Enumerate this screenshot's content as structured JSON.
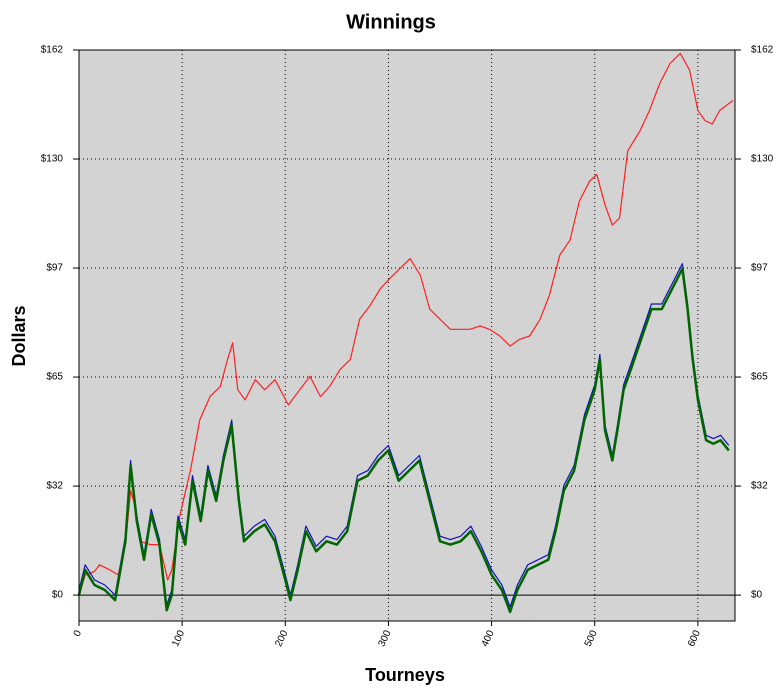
{
  "chart_data": {
    "type": "line",
    "title": "Winnings",
    "x_label": "Tourneys",
    "y_label": "Dollars",
    "xlim": [
      0,
      636
    ],
    "xticks": [
      0,
      100,
      200,
      300,
      400,
      500,
      600
    ],
    "ylim": [
      -7.7,
      162
    ],
    "yticks": [
      {
        "value": 0,
        "label": "$0"
      },
      {
        "value": 32.4,
        "label": "$32"
      },
      {
        "value": 64.8,
        "label": "$65"
      },
      {
        "value": 97.2,
        "label": "$97"
      },
      {
        "value": 129.6,
        "label": "$130"
      },
      {
        "value": 162,
        "label": "$162"
      }
    ],
    "grid": true,
    "series": [
      {
        "color": "#ff2020",
        "x": [
          0,
          6,
          15,
          20,
          30,
          38,
          45,
          50,
          54,
          59,
          69,
          78,
          86,
          90,
          98,
          108,
          117,
          127,
          137,
          144,
          149,
          154,
          161,
          171,
          180,
          190,
          203,
          214,
          224,
          234,
          243,
          253,
          263,
          272,
          282,
          292,
          301,
          311,
          321,
          331,
          340,
          350,
          360,
          369,
          379,
          389,
          398,
          408,
          418,
          427,
          437,
          447,
          456,
          466,
          476,
          485,
          495,
          502,
          510,
          517,
          524,
          532,
          544,
          553,
          563,
          573,
          583,
          592,
          600,
          607,
          614,
          621,
          634
        ],
        "values": [
          0,
          6,
          7,
          9,
          7.5,
          6,
          15,
          31,
          27,
          16,
          15,
          15,
          4.5,
          7.5,
          24,
          37,
          52,
          59,
          62,
          70,
          75,
          61,
          58,
          64,
          61,
          64,
          56.5,
          61,
          65,
          59,
          62,
          67,
          70,
          82,
          86,
          91,
          94,
          97,
          100,
          95,
          85,
          82,
          79,
          79,
          79,
          80,
          79,
          77,
          74,
          76,
          77,
          82,
          89,
          101,
          105.5,
          117,
          123,
          125,
          116,
          110,
          112,
          132,
          138,
          144,
          152,
          158,
          161,
          156,
          144,
          141,
          140,
          144,
          147
        ]
      },
      {
        "color": "#1010c0",
        "x": [
          0,
          6,
          15,
          25,
          35,
          45,
          50,
          56,
          63,
          70,
          78,
          85,
          90,
          96,
          103,
          110,
          118,
          125,
          133,
          140,
          148,
          155,
          160,
          170,
          180,
          190,
          200,
          205,
          212,
          220,
          230,
          240,
          250,
          260,
          270,
          280,
          290,
          300,
          310,
          320,
          330,
          340,
          350,
          360,
          370,
          380,
          390,
          400,
          410,
          418,
          425,
          435,
          445,
          455,
          462,
          470,
          480,
          490,
          500,
          505,
          510,
          517,
          522,
          528,
          535,
          545,
          555,
          565,
          575,
          585,
          590,
          595,
          600,
          608,
          615,
          622,
          630
        ],
        "values": [
          1.5,
          9,
          4.5,
          3,
          0,
          17.5,
          40,
          23.5,
          12,
          25.5,
          16.5,
          -3,
          1.5,
          23.5,
          16.5,
          35.5,
          23.5,
          38.5,
          29.5,
          41.5,
          52,
          29.5,
          17.5,
          20.5,
          22.5,
          17.5,
          6,
          0,
          9,
          20.5,
          14.5,
          17.5,
          16.5,
          20.5,
          35.5,
          37,
          41.5,
          44.5,
          35.5,
          38.5,
          41.5,
          29.5,
          17.5,
          16.5,
          17.5,
          20.5,
          14.5,
          7.5,
          3,
          -3.5,
          3,
          9,
          10.5,
          12,
          20.5,
          32.5,
          38.5,
          53.5,
          62.5,
          71.5,
          50.5,
          41.5,
          50.5,
          62.5,
          68.5,
          77.5,
          86.5,
          86.5,
          92.5,
          98.5,
          86.5,
          71.5,
          59.5,
          47.5,
          46.5,
          47.5,
          44.5
        ]
      },
      {
        "color": "#006600",
        "x": [
          0,
          6,
          15,
          25,
          35,
          45,
          50,
          56,
          63,
          70,
          78,
          85,
          90,
          96,
          103,
          110,
          118,
          125,
          133,
          140,
          148,
          155,
          160,
          170,
          180,
          190,
          200,
          205,
          212,
          220,
          230,
          240,
          250,
          260,
          270,
          280,
          290,
          300,
          310,
          320,
          330,
          340,
          350,
          360,
          370,
          380,
          390,
          400,
          410,
          418,
          425,
          435,
          445,
          455,
          462,
          470,
          480,
          490,
          500,
          505,
          510,
          517,
          522,
          528,
          535,
          545,
          555,
          565,
          575,
          585,
          590,
          595,
          600,
          608,
          615,
          622,
          630
        ],
        "values": [
          0,
          7.5,
          3,
          1.5,
          -1.5,
          16,
          38.5,
          22,
          10.5,
          24,
          15,
          -4.5,
          0,
          22,
          15,
          34,
          22,
          37,
          28,
          40,
          50.5,
          28,
          16,
          19,
          21,
          16,
          4.5,
          -1.5,
          7.5,
          19,
          13,
          16,
          15,
          19,
          34,
          35.5,
          40,
          43,
          34,
          37,
          40,
          28,
          16,
          15,
          16,
          19,
          13,
          6,
          1.5,
          -5,
          1.5,
          7.5,
          9,
          10.5,
          19,
          31,
          37,
          52,
          61,
          70,
          49,
          40,
          49,
          61,
          67,
          76,
          85,
          85,
          91,
          97,
          85,
          70,
          58,
          46,
          45,
          46,
          43
        ]
      }
    ]
  }
}
